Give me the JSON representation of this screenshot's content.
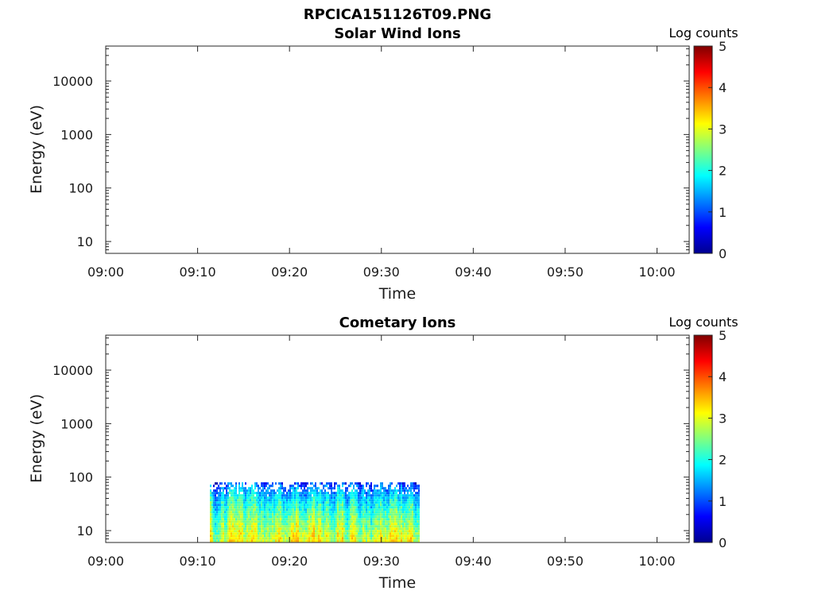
{
  "figure_title": "RPCICA151126T09.PNG",
  "chart_data": [
    {
      "type": "heatmap",
      "title": "Solar Wind Ions",
      "xlabel": "Time",
      "ylabel": "Energy (eV)",
      "x_ticks": [
        "09:00",
        "09:10",
        "09:20",
        "09:30",
        "09:40",
        "09:50",
        "10:00"
      ],
      "x_range_minutes": [
        0,
        63.5
      ],
      "y_scale": "log",
      "y_range": [
        6,
        45000
      ],
      "y_ticks": [
        "10",
        "100",
        "1000",
        "10000"
      ],
      "colorbar": {
        "label": "Log counts",
        "ticks": [
          "0",
          "1",
          "2",
          "3",
          "4",
          "5"
        ],
        "range": [
          0,
          5
        ],
        "colormap": "jet"
      },
      "data_region": null
    },
    {
      "type": "heatmap",
      "title": "Cometary Ions",
      "xlabel": "Time",
      "ylabel": "Energy (eV)",
      "x_ticks": [
        "09:00",
        "09:10",
        "09:20",
        "09:30",
        "09:40",
        "09:50",
        "10:00"
      ],
      "x_range_minutes": [
        0,
        63.5
      ],
      "y_scale": "log",
      "y_range": [
        6,
        45000
      ],
      "y_ticks": [
        "10",
        "100",
        "1000",
        "10000"
      ],
      "colorbar": {
        "label": "Log counts",
        "ticks": [
          "0",
          "1",
          "2",
          "3",
          "4",
          "5"
        ],
        "range": [
          0,
          5
        ],
        "colormap": "jet"
      },
      "data_region": {
        "time_start": "09:11:20",
        "time_end": "09:34:00",
        "energy_min_eV": 6,
        "energy_max_eV": 80,
        "typical_log_counts_low_energy": 3,
        "typical_log_counts_high_energy": 1,
        "peak_log_counts": 3.6
      }
    }
  ]
}
